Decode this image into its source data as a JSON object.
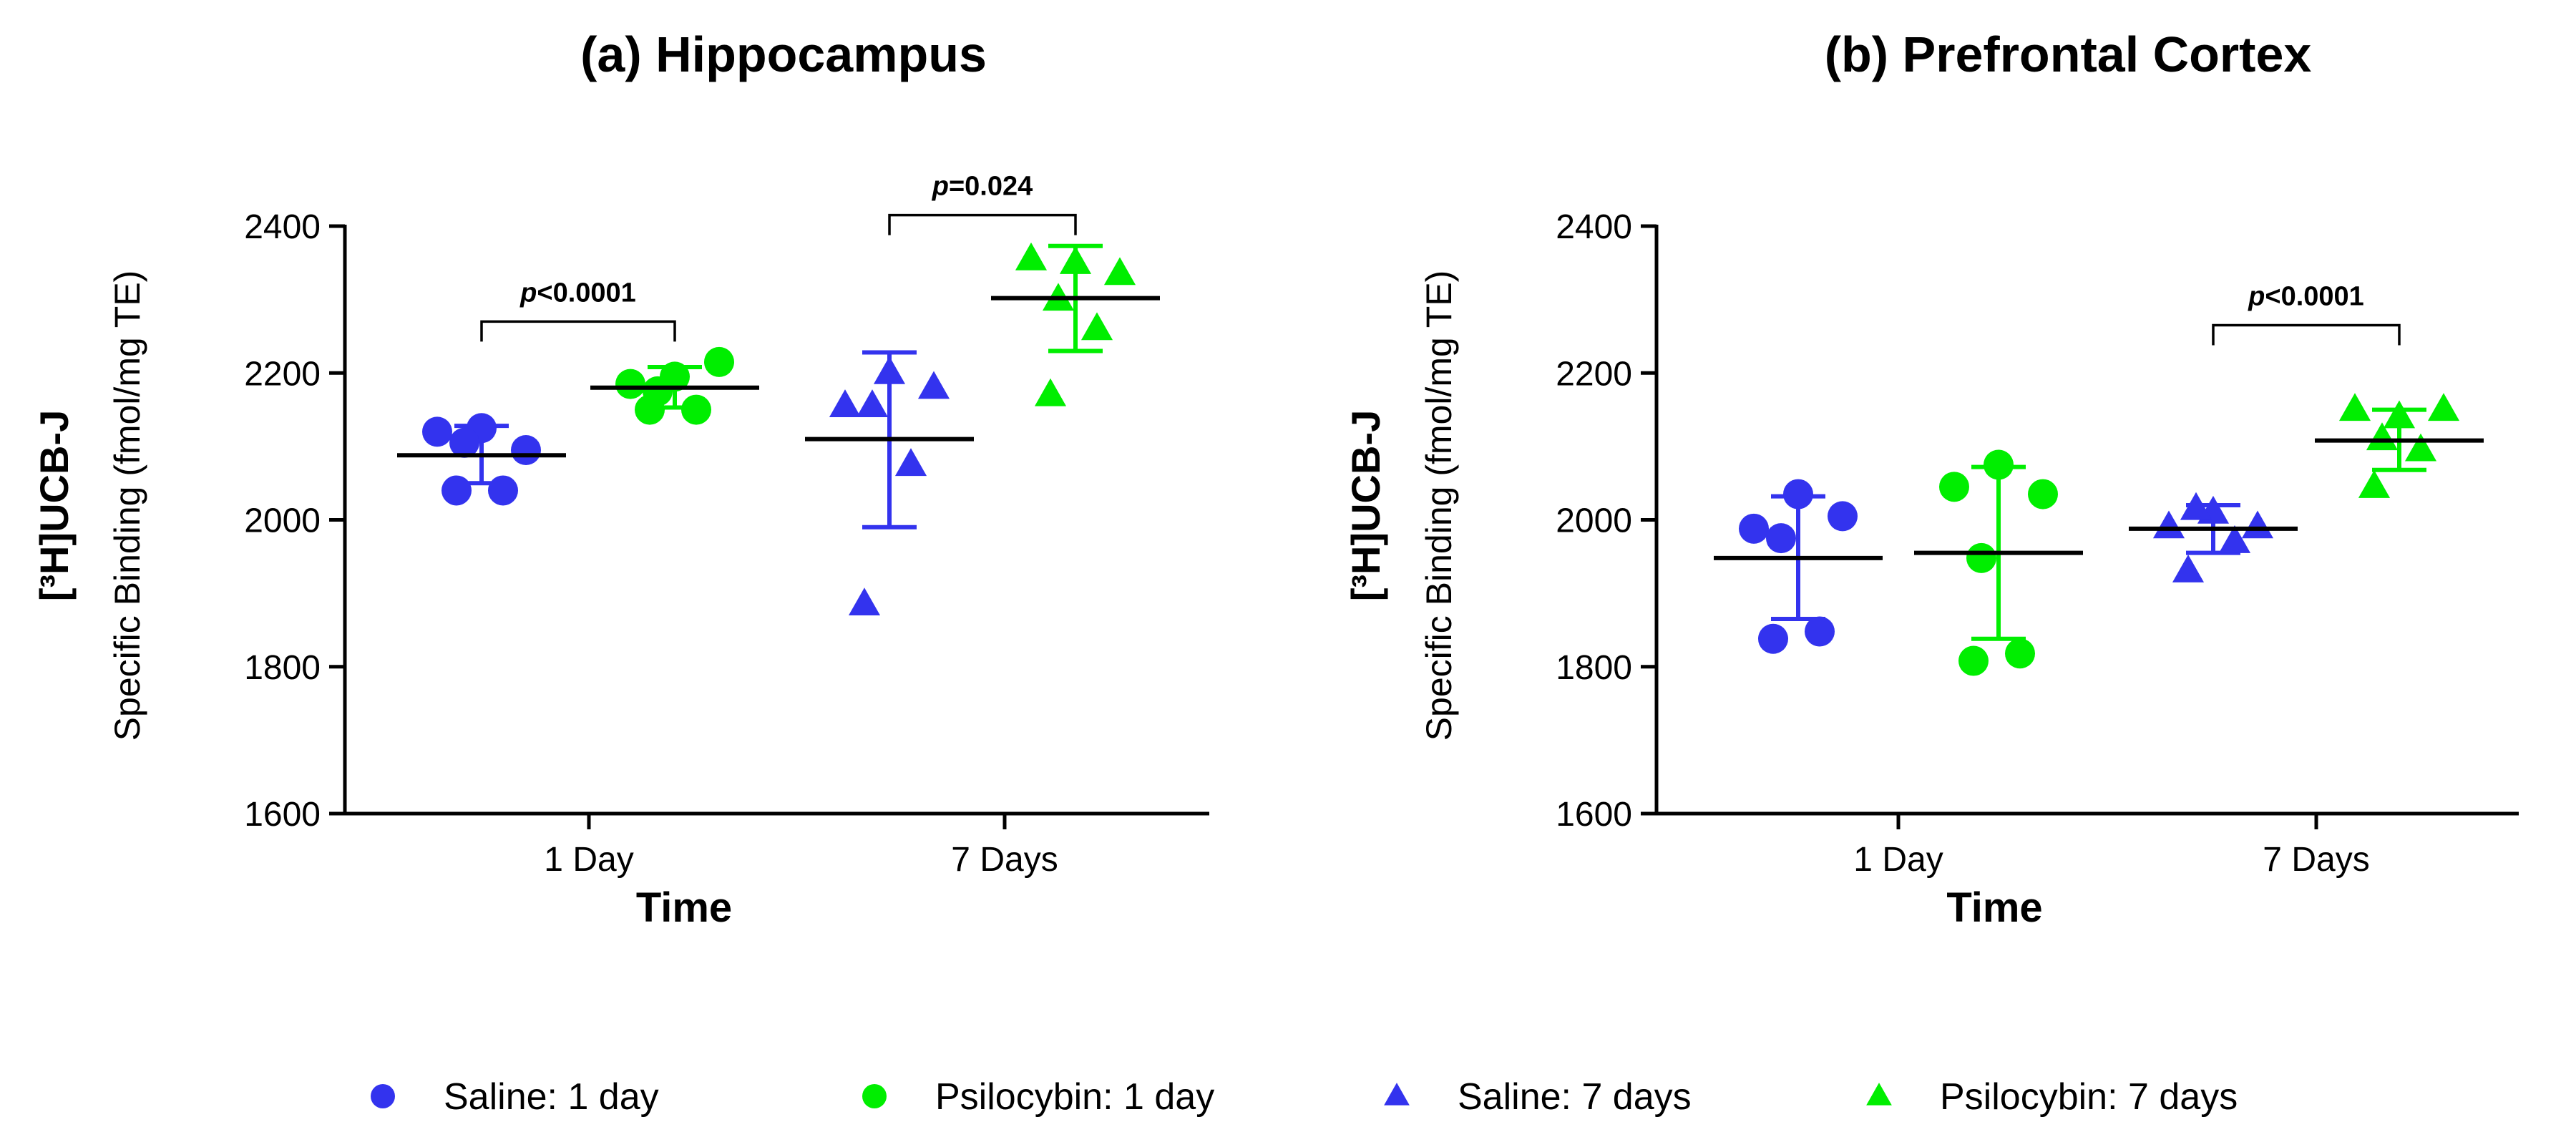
{
  "chart_data": [
    {
      "type": "scatter",
      "title": "(a) Hippocampus",
      "xlabel": "Time",
      "ylabel_main": "[³H]UCB-J",
      "ylabel_sub": "Specific Binding (fmol/mg TE)",
      "ylim": [
        1600,
        2400
      ],
      "yticks": [
        1600,
        1800,
        2000,
        2200,
        2400
      ],
      "categories": [
        "1 Day",
        "7 Days"
      ],
      "groups": [
        {
          "series": "Saline: 1 day",
          "points": [
            2120,
            2125,
            2095,
            2105,
            2040,
            2040
          ],
          "mean": 2088,
          "sd_low": 2050,
          "sd_high": 2128
        },
        {
          "series": "Psilocybin: 1 day",
          "points": [
            2185,
            2195,
            2215,
            2175,
            2150,
            2150
          ],
          "mean": 2180,
          "sd_low": 2153,
          "sd_high": 2208
        },
        {
          "series": "Saline: 7 days",
          "points": [
            2155,
            2200,
            2180,
            2155,
            2075,
            1885
          ],
          "mean": 2110,
          "sd_low": 1990,
          "sd_high": 2228
        },
        {
          "series": "Psilocybin: 7 days",
          "points": [
            2355,
            2350,
            2335,
            2300,
            2260,
            2170
          ],
          "mean": 2302,
          "sd_low": 2230,
          "sd_high": 2373
        }
      ],
      "significance": [
        {
          "label": "p<0.0001",
          "p_italic": "p",
          "value_text": "<0.0001",
          "from_group": 0,
          "to_group": 1,
          "y": 2270
        },
        {
          "label": "p=0.024",
          "p_italic": "p",
          "value_text": "=0.024",
          "from_group": 2,
          "to_group": 3,
          "y": 2415
        }
      ]
    },
    {
      "type": "scatter",
      "title": "(b) Prefrontal Cortex",
      "xlabel": "Time",
      "ylabel_main": "[³H]UCB-J",
      "ylabel_sub": "Specific Binding (fmol/mg TE)",
      "ylim": [
        1600,
        2400
      ],
      "yticks": [
        1600,
        1800,
        2000,
        2200,
        2400
      ],
      "categories": [
        "1 Day",
        "7 Days"
      ],
      "groups": [
        {
          "series": "Saline: 1 day",
          "points": [
            1988,
            2035,
            2005,
            1975,
            1848,
            1838
          ],
          "mean": 1948,
          "sd_low": 1865,
          "sd_high": 2032
        },
        {
          "series": "Psilocybin: 1 day",
          "points": [
            2045,
            2075,
            2035,
            1948,
            1818,
            1808
          ],
          "mean": 1955,
          "sd_low": 1838,
          "sd_high": 2072
        },
        {
          "series": "Saline: 7 days",
          "points": [
            1990,
            2010,
            1990,
            2015,
            1970,
            1930
          ],
          "mean": 1988,
          "sd_low": 1955,
          "sd_high": 2020
        },
        {
          "series": "Psilocybin: 7 days",
          "points": [
            2150,
            2140,
            2150,
            2110,
            2095,
            2045
          ],
          "mean": 2108,
          "sd_low": 2068,
          "sd_high": 2150
        }
      ],
      "significance": [
        {
          "label": "p<0.0001",
          "p_italic": "p",
          "value_text": "<0.0001",
          "from_group": 2,
          "to_group": 3,
          "y": 2265
        }
      ]
    }
  ],
  "legend": [
    {
      "label": "Saline: 1 day",
      "shape": "circle",
      "color": "#3333ee"
    },
    {
      "label": "Psilocybin: 1 day",
      "shape": "circle",
      "color": "#00ee00"
    },
    {
      "label": "Saline: 7 days",
      "shape": "triangle",
      "color": "#3333ee"
    },
    {
      "label": "Psilocybin: 7 days",
      "shape": "triangle",
      "color": "#00ee00"
    }
  ],
  "colors": {
    "saline": "#3333ee",
    "psilocybin": "#00ee00",
    "axis": "#000000"
  }
}
